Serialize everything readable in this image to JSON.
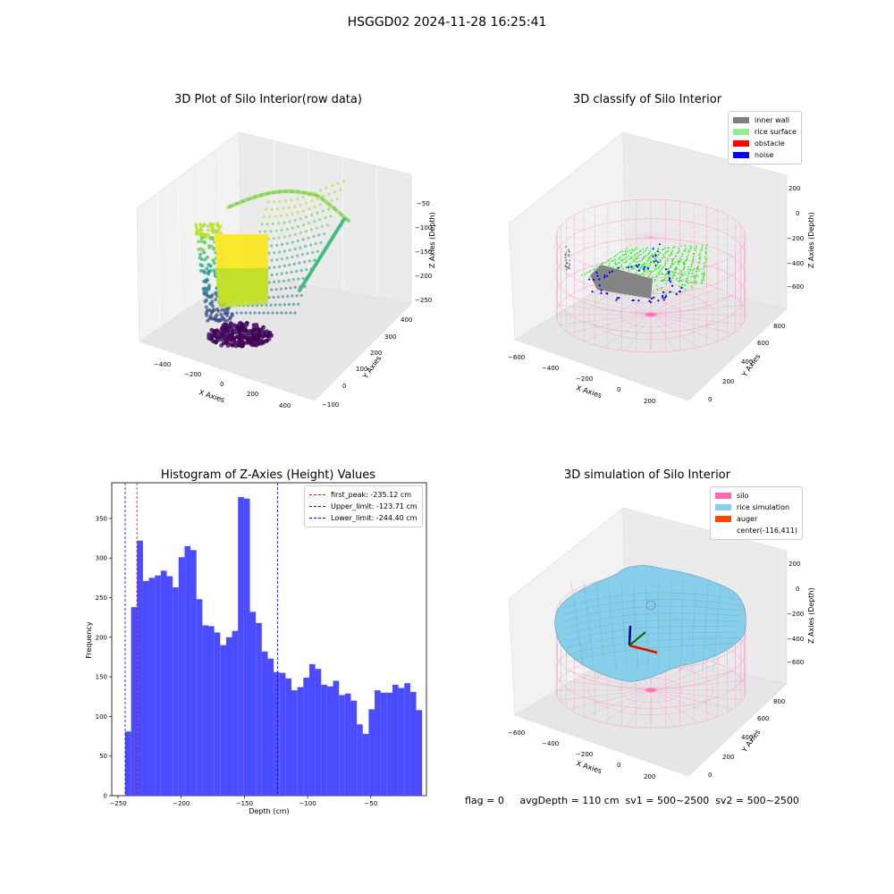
{
  "figure": {
    "suptitle": "HSGGD02 2024-11-28 16:25:41",
    "status_line": "flag = 0     avgDepth = 110 cm  sv1 = 500~2500  sv2 = 500~2500"
  },
  "panel_raw": {
    "title": "3D Plot of Silo Interior(row data)",
    "xlabel": "X Axies",
    "ylabel": "Y Axies",
    "zlabel": "Z Axies (Depth)",
    "xticks": [
      "−400",
      "−200",
      "0",
      "200",
      "400"
    ],
    "yticks": [
      "−100",
      "0",
      "100",
      "200",
      "300",
      "400"
    ],
    "zticks": [
      "−50",
      "−100",
      "−150",
      "−200",
      "−250"
    ],
    "colormap": "viridis"
  },
  "panel_classify": {
    "title": "3D classify of Silo Interior",
    "xlabel": "X Axies",
    "ylabel": "Y Axies",
    "zlabel": "Z Axies (Depth)",
    "xticks": [
      "−600",
      "−400",
      "−200",
      "0",
      "200"
    ],
    "yticks": [
      "0",
      "200",
      "400",
      "600",
      "800"
    ],
    "zticks": [
      "200",
      "0",
      "−200",
      "−400",
      "−600"
    ],
    "legend": [
      {
        "label": "inner wall",
        "color": "#808080"
      },
      {
        "label": "rice surface",
        "color": "#90ee90"
      },
      {
        "label": "obstacle",
        "color": "#ff0000"
      },
      {
        "label": "noise",
        "color": "#0000ff"
      }
    ]
  },
  "panel_sim": {
    "title": "3D simulation of Silo Interior",
    "xlabel": "X Axies",
    "ylabel": "Y Axies",
    "zlabel": "Z Axies (Depth)",
    "xticks": [
      "−600",
      "−400",
      "−200",
      "0",
      "200"
    ],
    "yticks": [
      "0",
      "200",
      "400",
      "600",
      "800"
    ],
    "zticks": [
      "200",
      "0",
      "−200",
      "−400",
      "−600"
    ],
    "legend": [
      {
        "label": "silo",
        "color": "#ff69b4"
      },
      {
        "label": "rice simulation",
        "color": "#87ceeb"
      },
      {
        "label": "auger",
        "color": "#ff4500"
      },
      {
        "label": "center(-116,411)",
        "color": ""
      }
    ]
  },
  "chart_data": {
    "type": "bar",
    "title": "Histogram of Z-Axies (Height) Values",
    "xlabel": "Depth (cm)",
    "ylabel": "Frequency",
    "xlim": [
      -255,
      -6
    ],
    "ylim": [
      0,
      395
    ],
    "xticks": [
      -250,
      -200,
      -150,
      -100,
      -50
    ],
    "yticks": [
      0,
      50,
      100,
      150,
      200,
      250,
      300,
      350
    ],
    "bin_start": -244.4,
    "bin_width": 4.7,
    "values": [
      81,
      238,
      322,
      271,
      275,
      278,
      284,
      277,
      263,
      301,
      315,
      310,
      248,
      215,
      214,
      206,
      190,
      200,
      208,
      377,
      375,
      232,
      218,
      182,
      173,
      156,
      155,
      148,
      133,
      137,
      149,
      166,
      160,
      140,
      138,
      145,
      127,
      129,
      120,
      90,
      78,
      109,
      133,
      130,
      130,
      140,
      136,
      142,
      131,
      108
    ],
    "bar_color": "#4b4bff",
    "vlines": [
      {
        "label": "first_peak: -235.12 cm",
        "x": -235.12,
        "color": "#ff0000"
      },
      {
        "label": "Upper_limit: -123.71 cm",
        "x": -123.71,
        "color": "#0000ff"
      },
      {
        "label": "Lower_limit: -244.40 cm",
        "x": -244.4,
        "color": "#0000ff"
      }
    ],
    "legend_position": "top-right"
  }
}
